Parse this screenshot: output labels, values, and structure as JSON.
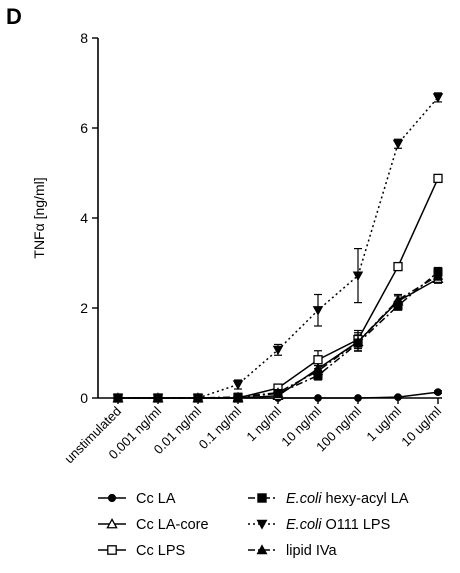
{
  "chart_data": {
    "type": "line",
    "panel_label": "D",
    "title": "",
    "xlabel": "",
    "ylabel": "TNFα [ng/ml]",
    "ylim": [
      0,
      8
    ],
    "yticks": [
      "0",
      "2",
      "4",
      "6",
      "8"
    ],
    "categories": [
      "unstimulated",
      "0.001 ng/ml",
      "0.01 ng/ml",
      "0.1 ng/ml",
      "1 ng/ml",
      "10 ng/ml",
      "100 ng/ml",
      "1 ug/ml",
      "10 ug/ml"
    ],
    "grid": false,
    "legend_position": "bottom",
    "series": [
      {
        "name": "Cc LA",
        "marker": "circle-filled",
        "dash": "solid",
        "values": [
          0,
          0,
          0,
          0,
          0,
          0,
          0,
          0.02,
          0.13
        ],
        "errors": [
          0,
          0,
          0,
          0,
          0,
          0,
          0,
          0.02,
          0.03
        ]
      },
      {
        "name": "Cc LA-core",
        "marker": "triangle-open",
        "dash": "solid",
        "values": [
          0,
          0,
          0,
          0,
          0.05,
          0.65,
          1.25,
          2.15,
          2.65
        ],
        "errors": [
          0,
          0,
          0,
          0,
          0.05,
          0.12,
          0.15,
          0.12,
          0.1
        ]
      },
      {
        "name": "Cc LPS",
        "marker": "square-open",
        "dash": "solid",
        "values": [
          0,
          0,
          0,
          0,
          0.22,
          0.85,
          1.3,
          2.92,
          4.88
        ],
        "errors": [
          0,
          0,
          0,
          0,
          0.06,
          0.2,
          0.2,
          0.06,
          0.05
        ]
      },
      {
        "name": "hexy-acyl LA",
        "name_prefix": "E.coli",
        "marker": "square-filled",
        "dash": "dashdot",
        "values": [
          0,
          0,
          0,
          0.02,
          0.1,
          0.5,
          1.22,
          2.05,
          2.8
        ],
        "errors": [
          0,
          0,
          0,
          0,
          0.04,
          0.1,
          0.18,
          0.1,
          0.1
        ]
      },
      {
        "name": "O111 LPS",
        "name_prefix": "E.coli",
        "marker": "triangle-down-filled",
        "dash": "dotted",
        "values": [
          0,
          0,
          0,
          0.3,
          1.07,
          1.95,
          2.72,
          5.65,
          6.68
        ],
        "errors": [
          0,
          0,
          0,
          0.1,
          0.12,
          0.35,
          0.6,
          0.1,
          0.1
        ]
      },
      {
        "name": "lipid IVa",
        "marker": "triangle-filled",
        "dash": "dashdot",
        "values": [
          0,
          0,
          0,
          0.02,
          0.12,
          0.6,
          1.25,
          2.18,
          2.72
        ],
        "errors": [
          0,
          0,
          0,
          0,
          0.05,
          0.12,
          0.2,
          0.12,
          0.1
        ]
      }
    ]
  }
}
